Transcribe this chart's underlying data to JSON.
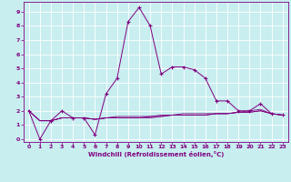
{
  "xlabel": "Windchill (Refroidissement éolien,°C)",
  "bg_color": "#c8eef0",
  "grid_color": "#ffffff",
  "line_color": "#800080",
  "spine_color": "#800080",
  "xlim": [
    -0.5,
    23.5
  ],
  "ylim": [
    -0.2,
    9.7
  ],
  "xticks": [
    0,
    1,
    2,
    3,
    4,
    5,
    6,
    7,
    8,
    9,
    10,
    11,
    12,
    13,
    14,
    15,
    16,
    17,
    18,
    19,
    20,
    21,
    22,
    23
  ],
  "yticks": [
    0,
    1,
    2,
    3,
    4,
    5,
    6,
    7,
    8,
    9
  ],
  "main_x": [
    0,
    1,
    2,
    3,
    4,
    5,
    6,
    7,
    8,
    9,
    10,
    11,
    12,
    13,
    14,
    15,
    16,
    17,
    18,
    19,
    20,
    21,
    22,
    23
  ],
  "main_y": [
    2.0,
    0.0,
    1.3,
    2.0,
    1.5,
    1.5,
    0.3,
    3.2,
    4.3,
    8.3,
    9.3,
    8.0,
    4.6,
    5.1,
    5.1,
    4.9,
    4.3,
    2.7,
    2.7,
    2.0,
    2.0,
    2.5,
    1.8,
    1.7
  ],
  "flat_x": [
    0,
    1,
    2,
    3,
    4,
    5,
    6,
    7,
    8,
    9,
    10,
    11,
    12,
    13,
    14,
    15,
    16,
    17,
    18,
    19,
    20,
    21,
    22,
    23
  ],
  "flat_y1": [
    2.0,
    1.3,
    1.3,
    1.5,
    1.5,
    1.5,
    1.4,
    1.5,
    1.5,
    1.5,
    1.5,
    1.6,
    1.6,
    1.7,
    1.7,
    1.7,
    1.7,
    1.8,
    1.8,
    1.9,
    1.9,
    2.0,
    1.8,
    1.7
  ],
  "flat_y2": [
    2.0,
    1.3,
    1.3,
    1.5,
    1.5,
    1.5,
    1.4,
    1.5,
    1.6,
    1.6,
    1.6,
    1.6,
    1.7,
    1.7,
    1.8,
    1.8,
    1.8,
    1.8,
    1.8,
    1.9,
    1.9,
    2.0,
    1.8,
    1.7
  ],
  "flat_y3": [
    2.0,
    1.3,
    1.3,
    1.5,
    1.5,
    1.5,
    1.4,
    1.5,
    1.5,
    1.5,
    1.5,
    1.5,
    1.6,
    1.7,
    1.7,
    1.7,
    1.7,
    1.8,
    1.8,
    1.9,
    2.0,
    2.1,
    1.8,
    1.7
  ]
}
